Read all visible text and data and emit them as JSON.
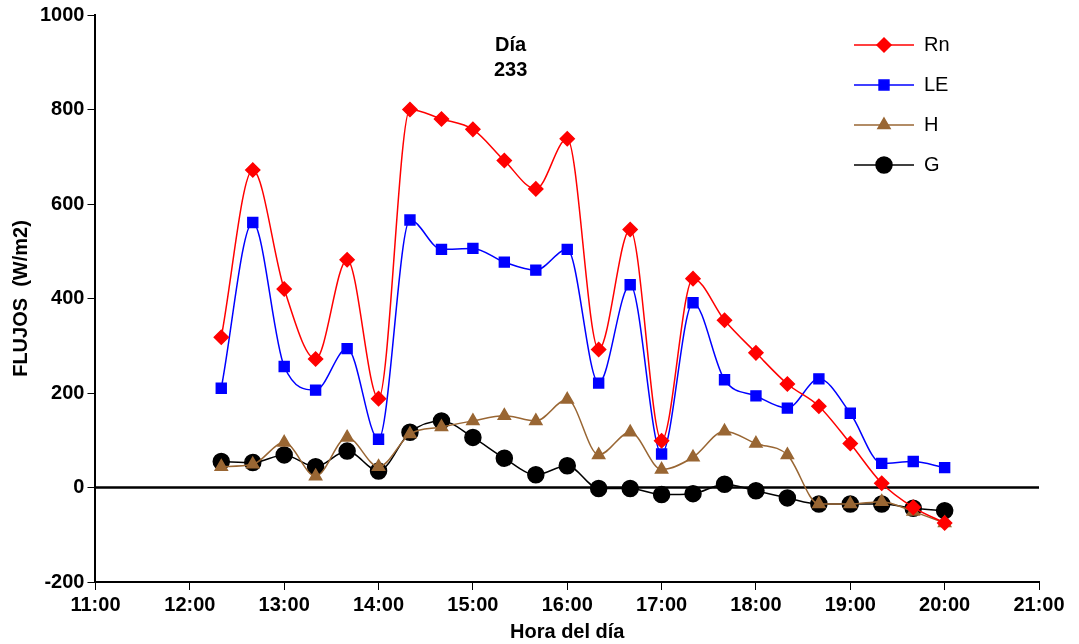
{
  "chart_data": {
    "type": "line",
    "xlabel": "Hora del día",
    "ylabel": "FLUJOS  (W/m2)",
    "annotations": [
      "Día\n233"
    ],
    "xlim": [
      11,
      21
    ],
    "xticks": [
      {
        "value": 11,
        "label": "11:00"
      },
      {
        "value": 12,
        "label": "12:00"
      },
      {
        "value": 13,
        "label": "13:00"
      },
      {
        "value": 14,
        "label": "14:00"
      },
      {
        "value": 15,
        "label": "15:00"
      },
      {
        "value": 16,
        "label": "16:00"
      },
      {
        "value": 17,
        "label": "17:00"
      },
      {
        "value": 18,
        "label": "18:00"
      },
      {
        "value": 19,
        "label": "19:00"
      },
      {
        "value": 20,
        "label": "20:00"
      },
      {
        "value": 21,
        "label": "21:00"
      }
    ],
    "ylim": [
      -200,
      1000
    ],
    "yticks": [
      -200,
      0,
      200,
      400,
      600,
      800,
      1000
    ],
    "x": [
      12.333,
      12.667,
      13,
      13.333,
      13.667,
      14,
      14.333,
      14.667,
      15,
      15.333,
      15.667,
      16,
      16.333,
      16.667,
      17,
      17.333,
      17.667,
      18,
      18.333,
      18.667,
      19,
      19.333,
      19.667,
      20
    ],
    "series": [
      {
        "name": "Rn",
        "color": "#ff0000",
        "marker": "diamond",
        "values": [
          318,
          672,
          420,
          272,
          482,
          188,
          800,
          780,
          758,
          692,
          632,
          738,
          292,
          546,
          99,
          442,
          354,
          285,
          219,
          172,
          93,
          9,
          -42,
          -75
        ]
      },
      {
        "name": "LE",
        "color": "#0000ff",
        "marker": "square",
        "values": [
          210,
          561,
          256,
          206,
          294,
          102,
          566,
          504,
          506,
          477,
          460,
          504,
          221,
          429,
          71,
          391,
          228,
          194,
          168,
          230,
          157,
          51,
          55,
          42
        ]
      },
      {
        "name": "H",
        "color": "#996633",
        "marker": "triangle",
        "values": [
          44,
          49,
          95,
          24,
          106,
          44,
          113,
          128,
          141,
          152,
          141,
          186,
          69,
          117,
          38,
          64,
          119,
          93,
          69,
          -35,
          -35,
          -30,
          -51,
          -75
        ]
      },
      {
        "name": "G",
        "color": "#000000",
        "marker": "circle",
        "values": [
          55,
          53,
          69,
          44,
          77,
          35,
          117,
          141,
          106,
          62,
          27,
          46,
          -2,
          -2,
          -15,
          -13,
          7,
          -7,
          -22,
          -35,
          -35,
          -35,
          -44,
          -49
        ]
      }
    ],
    "ref_lines": [
      {
        "axis": "y",
        "value": 0,
        "color": "#000000"
      }
    ],
    "legend": "top right",
    "grid": false,
    "line_style": "solid"
  }
}
